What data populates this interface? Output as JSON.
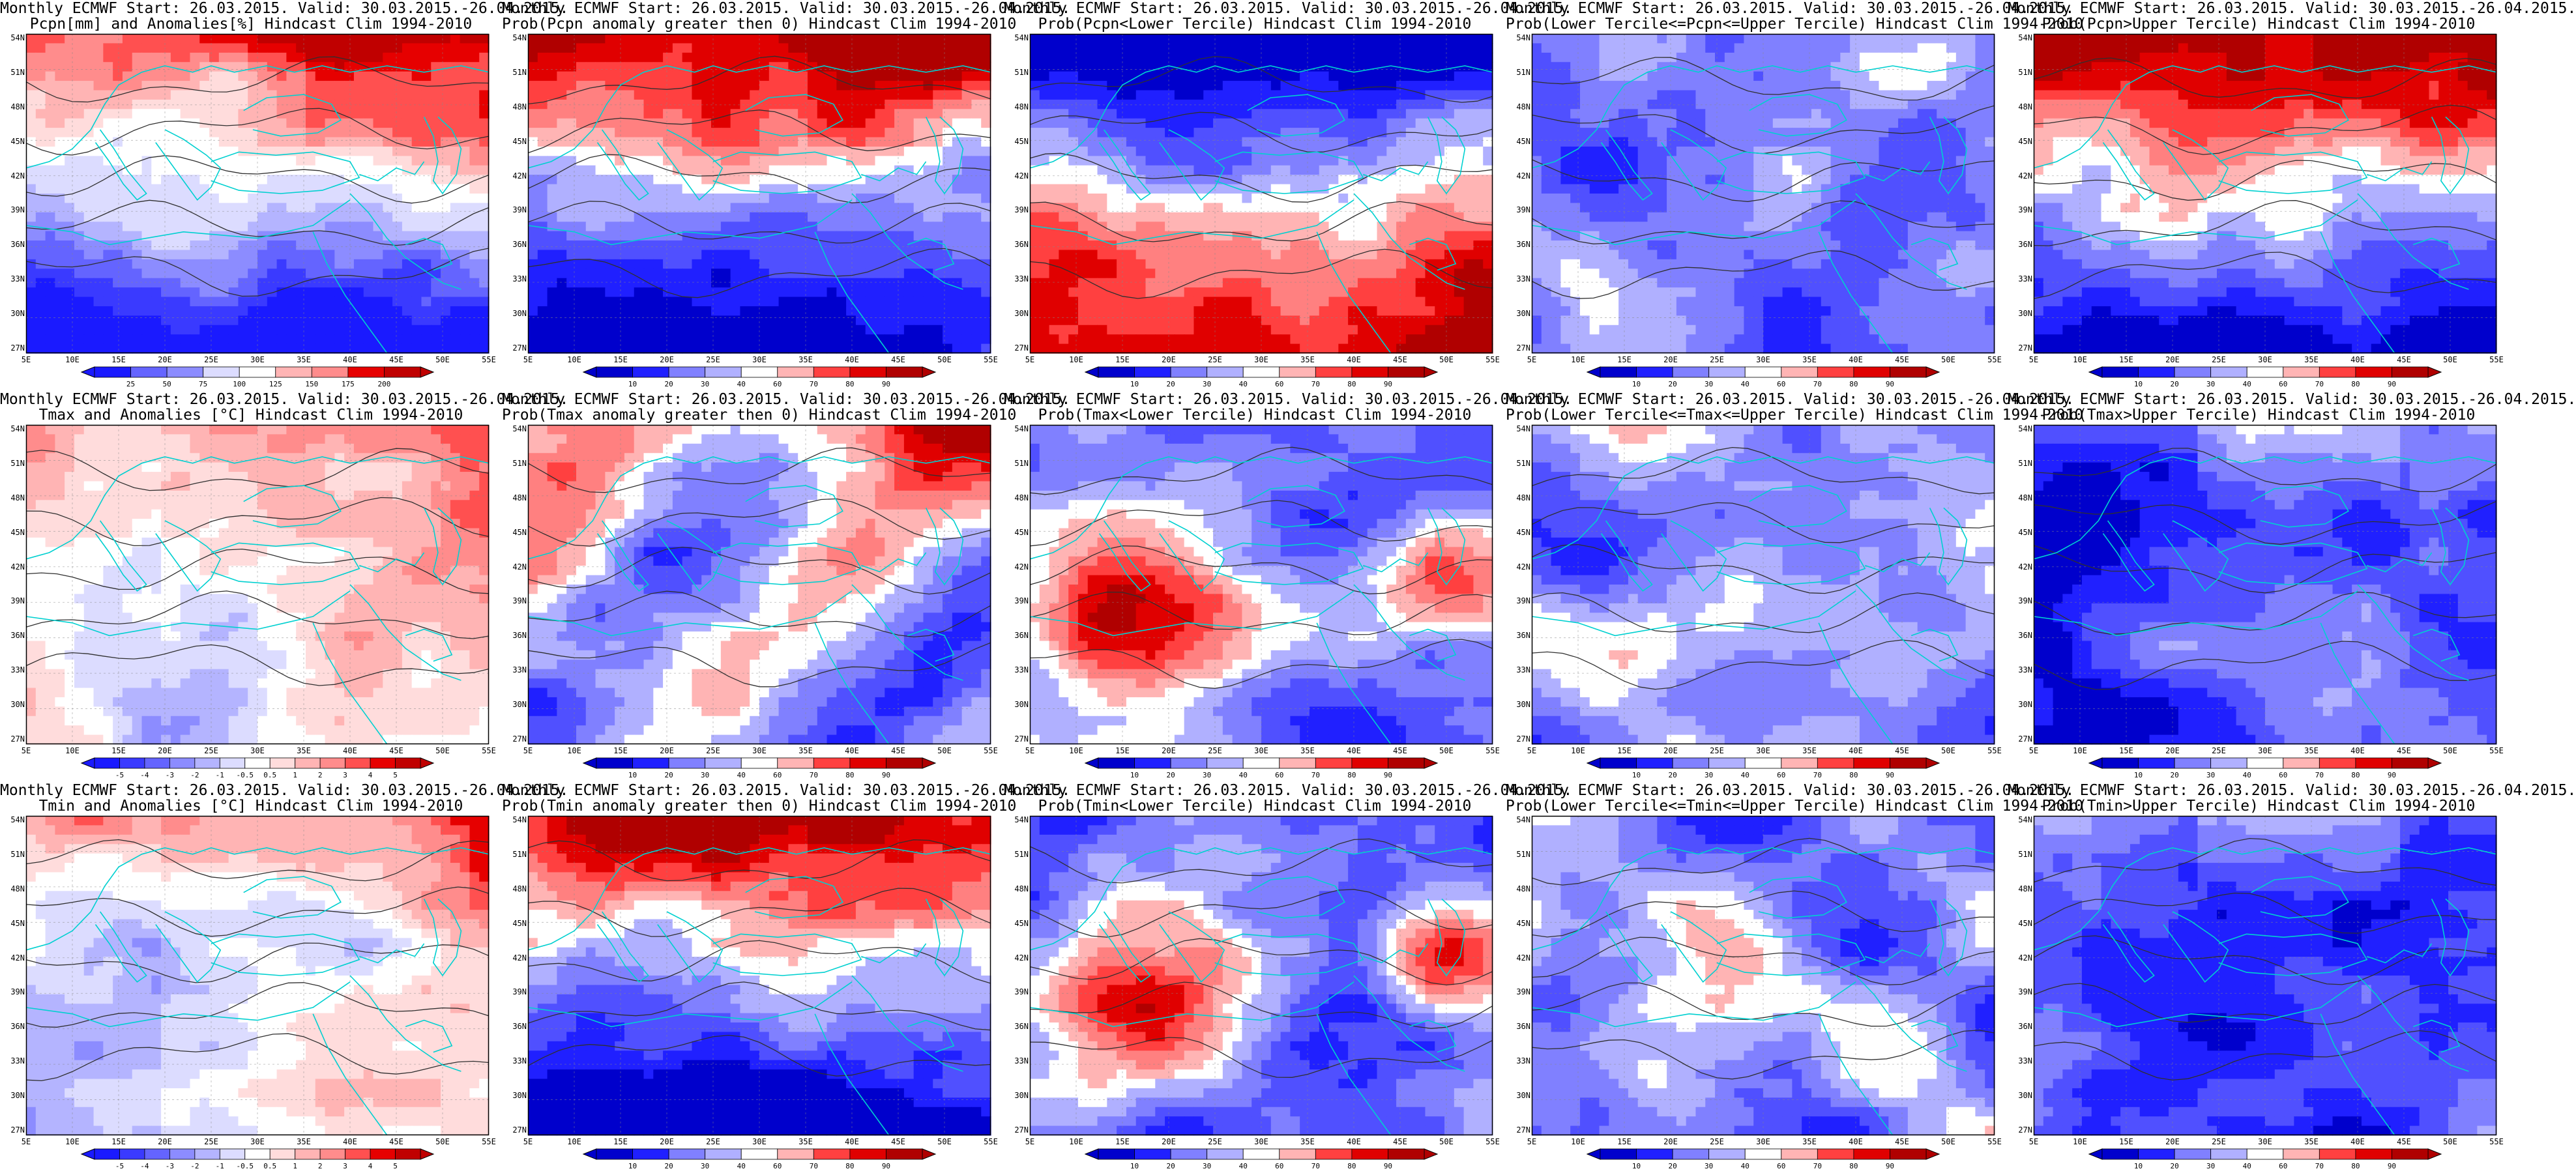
{
  "figure": {
    "lat_ticks": [
      "54N",
      "51N",
      "48N",
      "45N",
      "42N",
      "39N",
      "36N",
      "33N",
      "30N",
      "27N"
    ],
    "lon_ticks": [
      "5E",
      "10E",
      "15E",
      "20E",
      "25E",
      "30E",
      "35E",
      "40E",
      "45E",
      "50E",
      "55E"
    ],
    "panels": [
      {
        "id": "pcpn-anom",
        "row": 0,
        "col": 0,
        "title1": "Monthly ECMWF Start: 26.03.2015. Valid: 30.03.2015.-26.04.2015.",
        "title2": "Pcpn[mm] and Anomalies[%] Hindcast Clim 1994-2010",
        "legend": [
          "25",
          "50",
          "75",
          "100",
          "125",
          "150",
          "175",
          "200"
        ],
        "scheme": "anom",
        "pattern": "n_warm_s_cold"
      },
      {
        "id": "pcpn-prob-gt0",
        "row": 0,
        "col": 1,
        "title1": "Monthly ECMWF Start: 26.03.2015. Valid: 30.03.2015.-26.04.2015.",
        "title2": "Prob(Pcpn anomaly greater then 0) Hindcast Clim 1994-2010",
        "legend": [
          "10",
          "20",
          "30",
          "40",
          "60",
          "70",
          "80",
          "90"
        ],
        "scheme": "prob",
        "pattern": "n_warm_s_cold"
      },
      {
        "id": "pcpn-prob-lower",
        "row": 0,
        "col": 2,
        "title1": "Monthly ECMWF Start: 26.03.2015. Valid: 30.03.2015.-26.04.2015.",
        "title2": "Prob(Pcpn<Lower Tercile) Hindcast Clim 1994-2010",
        "legend": [
          "10",
          "20",
          "30",
          "40",
          "60",
          "70",
          "80",
          "90"
        ],
        "scheme": "prob",
        "pattern": "n_cold_s_warm"
      },
      {
        "id": "pcpn-prob-middle",
        "row": 0,
        "col": 3,
        "title1": "Monthly ECMWF Start: 26.03.2015. Valid: 30.03.2015.-26.04.2015.",
        "title2": "Prob(Lower Tercile<=Pcpn<=Upper Tercile) Hindcast Clim 1994-2010",
        "legend": [
          "10",
          "20",
          "30",
          "40",
          "60",
          "70",
          "80",
          "90"
        ],
        "scheme": "prob",
        "pattern": "mixed_blue"
      },
      {
        "id": "pcpn-prob-upper",
        "row": 0,
        "col": 4,
        "title1": "Monthly ECMWF Start: 26.03.2015. Valid: 30.03.2015.-26.04.2015.",
        "title2": "Prob(Pcpn>Upper Tercile) Hindcast Clim 1994-2010",
        "legend": [
          "10",
          "20",
          "30",
          "40",
          "60",
          "70",
          "80",
          "90"
        ],
        "scheme": "prob",
        "pattern": "n_warm_s_cold"
      },
      {
        "id": "tmax-anom",
        "row": 1,
        "col": 0,
        "title1": "Monthly ECMWF Start: 26.03.2015. Valid: 30.03.2015.-26.04.2015.",
        "title2": "Tmax and Anomalies [°C] Hindcast Clim 1994-2010",
        "legend": [
          "-5",
          "-4",
          "-3",
          "-2",
          "-1",
          "-0.5",
          "0.5",
          "1",
          "2",
          "3",
          "4",
          "5"
        ],
        "scheme": "anom",
        "pattern": "pale_ne_warm"
      },
      {
        "id": "tmax-prob-gt0",
        "row": 1,
        "col": 1,
        "title1": "Monthly ECMWF Start: 26.03.2015. Valid: 30.03.2015.-26.04.2015.",
        "title2": "Prob(Tmax anomaly greater then 0) Hindcast Clim 1994-2010",
        "legend": [
          "10",
          "20",
          "30",
          "40",
          "60",
          "70",
          "80",
          "90"
        ],
        "scheme": "prob",
        "pattern": "ne_warm_mixed"
      },
      {
        "id": "tmax-prob-lower",
        "row": 1,
        "col": 2,
        "title1": "Monthly ECMWF Start: 26.03.2015. Valid: 30.03.2015.-26.04.2015.",
        "title2": "Prob(Tmax<Lower Tercile) Hindcast Clim 1994-2010",
        "legend": [
          "10",
          "20",
          "30",
          "40",
          "60",
          "70",
          "80",
          "90"
        ],
        "scheme": "prob",
        "pattern": "blue_sw_red"
      },
      {
        "id": "tmax-prob-middle",
        "row": 1,
        "col": 3,
        "title1": "Monthly ECMWF Start: 26.03.2015. Valid: 30.03.2015.-26.04.2015.",
        "title2": "Prob(Lower Tercile<=Tmax<=Upper Tercile) Hindcast Clim 1994-2010",
        "legend": [
          "10",
          "20",
          "30",
          "40",
          "60",
          "70",
          "80",
          "90"
        ],
        "scheme": "prob",
        "pattern": "pale_mixed"
      },
      {
        "id": "tmax-prob-upper",
        "row": 1,
        "col": 4,
        "title1": "Monthly ECMWF Start: 26.03.2015. Valid: 30.03.2015.-26.04.2015.",
        "title2": "Prob(Tmax>Upper Tercile) Hindcast Clim 1994-2010",
        "legend": [
          "10",
          "20",
          "30",
          "40",
          "60",
          "70",
          "80",
          "90"
        ],
        "scheme": "prob",
        "pattern": "mostly_blue"
      },
      {
        "id": "tmin-anom",
        "row": 2,
        "col": 0,
        "title1": "Monthly ECMWF Start: 26.03.2015. Valid: 30.03.2015.-26.04.2015.",
        "title2": "Tmin and Anomalies [°C] Hindcast Clim 1994-2010",
        "legend": [
          "-5",
          "-4",
          "-3",
          "-2",
          "-1",
          "-0.5",
          "0.5",
          "1",
          "2",
          "3",
          "4",
          "5"
        ],
        "scheme": "anom",
        "pattern": "pale_ne_warm"
      },
      {
        "id": "tmin-prob-gt0",
        "row": 2,
        "col": 1,
        "title1": "Monthly ECMWF Start: 26.03.2015. Valid: 30.03.2015.-26.04.2015.",
        "title2": "Prob(Tmin anomaly greater then 0) Hindcast Clim 1994-2010",
        "legend": [
          "10",
          "20",
          "30",
          "40",
          "60",
          "70",
          "80",
          "90"
        ],
        "scheme": "prob",
        "pattern": "n_warm_s_cold"
      },
      {
        "id": "tmin-prob-lower",
        "row": 2,
        "col": 2,
        "title1": "Monthly ECMWF Start: 26.03.2015. Valid: 30.03.2015.-26.04.2015.",
        "title2": "Prob(Tmin<Lower Tercile) Hindcast Clim 1994-2010",
        "legend": [
          "10",
          "20",
          "30",
          "40",
          "60",
          "70",
          "80",
          "90"
        ],
        "scheme": "prob",
        "pattern": "blue_sw_red"
      },
      {
        "id": "tmin-prob-middle",
        "row": 2,
        "col": 3,
        "title1": "Monthly ECMWF Start: 26.03.2015. Valid: 30.03.2015.-26.04.2015.",
        "title2": "Prob(Lower Tercile<=Tmin<=Upper Tercile) Hindcast Clim 1994-2010",
        "legend": [
          "10",
          "20",
          "30",
          "40",
          "60",
          "70",
          "80",
          "90"
        ],
        "scheme": "prob",
        "pattern": "pale_mixed"
      },
      {
        "id": "tmin-prob-upper",
        "row": 2,
        "col": 4,
        "title1": "Monthly ECMWF Start: 26.03.2015. Valid: 30.03.2015.-26.04.2015.",
        "title2": "Prob(Tmin>Upper Tercile) Hindcast Clim 1994-2010",
        "legend": [
          "10",
          "20",
          "30",
          "40",
          "60",
          "70",
          "80",
          "90"
        ],
        "scheme": "prob",
        "pattern": "mostly_blue"
      }
    ],
    "colors": {
      "anom": [
        "#1a1aff",
        "#3a3aff",
        "#6464ff",
        "#8c8cff",
        "#b4b4ff",
        "#dcdcff",
        "#ffffff",
        "#ffdcdc",
        "#ffb4b4",
        "#ff8c8c",
        "#ff5050",
        "#e60000",
        "#c00000"
      ],
      "prob": [
        "#0000cc",
        "#2020ff",
        "#5050ff",
        "#8080ff",
        "#b0b0ff",
        "#ffffff",
        "#ffb4b4",
        "#ff8080",
        "#ff4040",
        "#e00000",
        "#b00000"
      ],
      "coast": "#00d0d0",
      "contour": "#303030"
    }
  }
}
